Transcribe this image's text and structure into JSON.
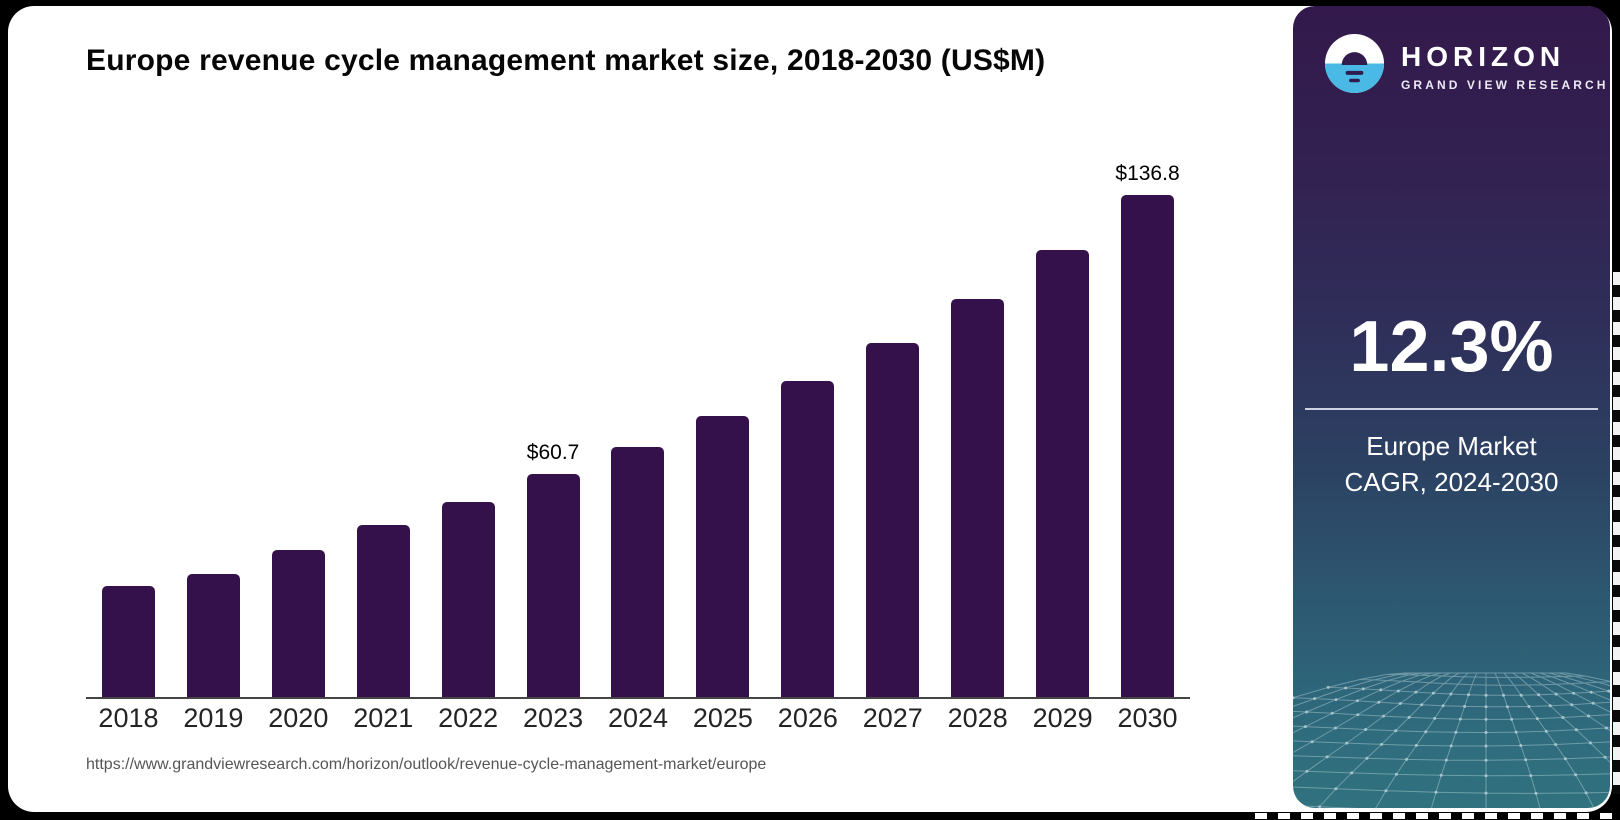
{
  "header": {
    "title": "Europe revenue cycle management market size, 2018-2030 (US$M)"
  },
  "chart_data": {
    "type": "bar",
    "title": "Europe revenue cycle management market size, 2018-2030 (US$M)",
    "unit": "US$M",
    "categories": [
      "2018",
      "2019",
      "2020",
      "2021",
      "2022",
      "2023",
      "2024",
      "2025",
      "2026",
      "2027",
      "2028",
      "2029",
      "2030"
    ],
    "values": [
      30.3,
      33.4,
      40.1,
      46.9,
      53.1,
      60.7,
      68.2,
      76.6,
      86.0,
      96.6,
      108.5,
      121.9,
      136.8
    ],
    "point_labels": {
      "2023": "$60.7",
      "2030": "$136.8"
    },
    "bar_color": "#34114a",
    "ylim": [
      0,
      143
    ],
    "grid": false,
    "legend": "none",
    "axis_line_color": "#454545"
  },
  "source": {
    "url": "https://www.grandviewresearch.com/horizon/outlook/revenue-cycle-management-market/europe"
  },
  "panel": {
    "brand": "HORIZON",
    "brand_sub": "GRAND VIEW RESEARCH",
    "cagr_value": "12.3%",
    "cagr_line1": "Europe Market",
    "cagr_line2": "CAGR, 2024-2030",
    "accent_blue": "#4ab9e6",
    "panel_top_color": "#33194b",
    "panel_bottom_color": "#31727f"
  }
}
